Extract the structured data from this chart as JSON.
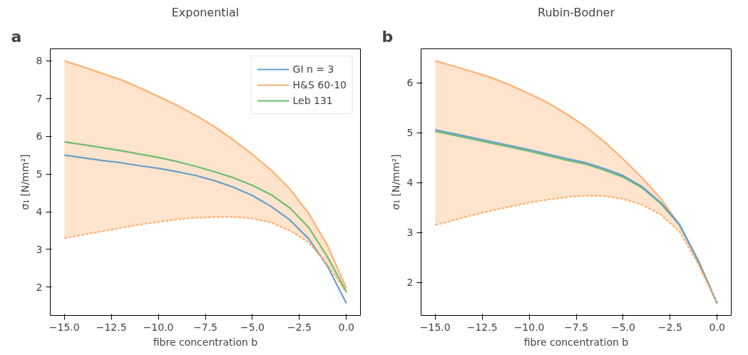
{
  "chart_data": [
    {
      "type": "line",
      "title": "Exponential",
      "annotations": [
        "a"
      ],
      "xlabel": "fibre concentration b",
      "ylabel": "σ₁ [N/mm²]",
      "x": [
        -15,
        -14,
        -13,
        -12,
        -11,
        -10,
        -9,
        -8,
        -7,
        -6,
        -5,
        -4,
        -3,
        -2,
        -1,
        0
      ],
      "xlim": [
        -15.75,
        0.75
      ],
      "ylim": [
        1.25,
        8.32
      ],
      "xticks": [
        {
          "value": -15,
          "label": "−15.0"
        },
        {
          "value": -12.5,
          "label": "−12.5"
        },
        {
          "value": -10,
          "label": "−10.0"
        },
        {
          "value": -7.5,
          "label": "−7.5"
        },
        {
          "value": -5,
          "label": "−5.0"
        },
        {
          "value": -2.5,
          "label": "−2.5"
        },
        {
          "value": 0,
          "label": "0.0"
        }
      ],
      "yticks": [
        2,
        3,
        4,
        5,
        6,
        7,
        8
      ],
      "grid": false,
      "legend": "top right",
      "line_style": "solid",
      "series": [
        {
          "name": "GI n = 3",
          "color": "#6a9fcb",
          "values": [
            5.5,
            5.43,
            5.36,
            5.3,
            5.22,
            5.15,
            5.06,
            4.96,
            4.82,
            4.65,
            4.43,
            4.14,
            3.78,
            3.28,
            2.55,
            1.57
          ]
        },
        {
          "name": "H&S 60-10",
          "color": "#ffb170",
          "values": [
            8.0,
            7.84,
            7.67,
            7.5,
            7.29,
            7.06,
            6.82,
            6.55,
            6.25,
            5.9,
            5.52,
            5.1,
            4.6,
            3.95,
            3.1,
            1.97
          ],
          "lower": [
            3.3,
            3.39,
            3.48,
            3.57,
            3.66,
            3.73,
            3.8,
            3.84,
            3.86,
            3.86,
            3.82,
            3.71,
            3.5,
            3.18,
            2.6,
            1.85
          ],
          "upper": [
            8.0,
            7.84,
            7.67,
            7.5,
            7.29,
            7.06,
            6.82,
            6.55,
            6.25,
            5.9,
            5.52,
            5.1,
            4.6,
            3.95,
            3.1,
            1.97
          ]
        },
        {
          "color": "#ffb170",
          "line_style": "dashed",
          "values": [
            3.3,
            3.39,
            3.48,
            3.57,
            3.66,
            3.73,
            3.8,
            3.84,
            3.86,
            3.86,
            3.82,
            3.71,
            3.5,
            3.18,
            2.6,
            1.85
          ]
        },
        {
          "name": "Leb 131",
          "color": "#6fbd6f",
          "values": [
            5.85,
            5.78,
            5.7,
            5.62,
            5.53,
            5.44,
            5.33,
            5.2,
            5.06,
            4.9,
            4.7,
            4.45,
            4.1,
            3.58,
            2.8,
            1.88
          ]
        }
      ]
    },
    {
      "type": "line",
      "title": "Rubin-Bodner",
      "annotations": [
        "b"
      ],
      "xlabel": "fibre concentration b",
      "ylabel": "σ₁ [N/mm²]",
      "x": [
        -15,
        -14,
        -13,
        -12,
        -11,
        -10,
        -9,
        -8,
        -7,
        -6,
        -5,
        -4,
        -3,
        -2,
        -1,
        0
      ],
      "xlim": [
        -15.75,
        0.75
      ],
      "ylim": [
        1.34,
        6.68
      ],
      "xticks": [
        {
          "value": -15,
          "label": "−15.0"
        },
        {
          "value": -12.5,
          "label": "−12.5"
        },
        {
          "value": -10,
          "label": "−10.0"
        },
        {
          "value": -7.5,
          "label": "−7.5"
        },
        {
          "value": -5,
          "label": "−5.0"
        },
        {
          "value": -2.5,
          "label": "−2.5"
        },
        {
          "value": 0,
          "label": "0.0"
        }
      ],
      "yticks": [
        2,
        3,
        4,
        5,
        6
      ],
      "grid": false,
      "line_style": "solid",
      "series": [
        {
          "color": "#ffb170",
          "values": [
            6.44,
            6.33,
            6.22,
            6.1,
            5.95,
            5.78,
            5.6,
            5.37,
            5.12,
            4.82,
            4.47,
            4.1,
            3.68,
            3.15,
            2.45,
            1.58
          ],
          "lower": [
            3.15,
            3.25,
            3.35,
            3.44,
            3.52,
            3.6,
            3.66,
            3.71,
            3.74,
            3.73,
            3.67,
            3.56,
            3.36,
            3.02,
            2.36,
            1.58
          ],
          "upper": [
            6.44,
            6.33,
            6.22,
            6.1,
            5.95,
            5.78,
            5.6,
            5.37,
            5.12,
            4.82,
            4.47,
            4.1,
            3.68,
            3.15,
            2.45,
            1.58
          ]
        },
        {
          "color": "#6fbd6f",
          "values": [
            5.03,
            4.95,
            4.87,
            4.79,
            4.71,
            4.63,
            4.54,
            4.45,
            4.37,
            4.25,
            4.11,
            3.9,
            3.58,
            3.15,
            2.42,
            1.58
          ]
        },
        {
          "color": "#6a9fcb",
          "values": [
            5.06,
            4.98,
            4.9,
            4.82,
            4.74,
            4.66,
            4.57,
            4.48,
            4.4,
            4.28,
            4.14,
            3.92,
            3.6,
            3.16,
            2.42,
            1.58
          ]
        },
        {
          "color": "#ffb170",
          "line_style": "dashed",
          "values": [
            3.15,
            3.25,
            3.35,
            3.44,
            3.52,
            3.6,
            3.66,
            3.71,
            3.74,
            3.73,
            3.67,
            3.56,
            3.36,
            3.02,
            2.36,
            1.58
          ]
        }
      ]
    }
  ]
}
